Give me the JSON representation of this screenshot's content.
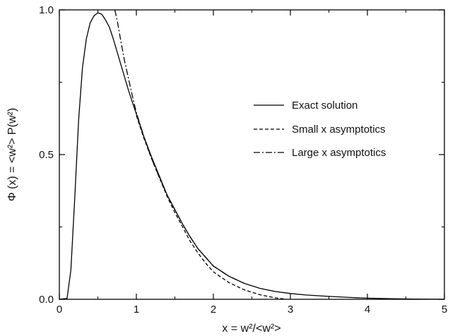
{
  "chart_data": {
    "type": "line",
    "xlabel": "x = w²/<w²>",
    "ylabel": "Φ (x) = <w²> P(w²)",
    "xlim": [
      0,
      5
    ],
    "ylim": [
      0,
      1
    ],
    "x_ticks": [
      "0",
      "1",
      "2",
      "3",
      "4",
      "5"
    ],
    "y_ticks": [
      "0.0",
      "0.5",
      "1.0"
    ],
    "legend_position": "right",
    "grid": false,
    "series": [
      {
        "name": "Exact solution",
        "style": "solid",
        "color": "#000000",
        "x": [
          0.0,
          0.1,
          0.15,
          0.2,
          0.25,
          0.3,
          0.35,
          0.4,
          0.45,
          0.5,
          0.55,
          0.6,
          0.65,
          0.7,
          0.8,
          0.9,
          1.0,
          1.1,
          1.2,
          1.3,
          1.4,
          1.5,
          1.6,
          1.7,
          1.8,
          1.9,
          2.0,
          2.2,
          2.4,
          2.6,
          2.8,
          3.0,
          3.2,
          3.5,
          3.8,
          4.0,
          4.3,
          4.6,
          5.0
        ],
        "y": [
          0.0,
          0.003,
          0.1,
          0.35,
          0.62,
          0.8,
          0.9,
          0.955,
          0.98,
          0.99,
          0.985,
          0.965,
          0.94,
          0.9,
          0.81,
          0.72,
          0.64,
          0.56,
          0.49,
          0.425,
          0.36,
          0.31,
          0.26,
          0.215,
          0.175,
          0.145,
          0.115,
          0.08,
          0.055,
          0.038,
          0.027,
          0.02,
          0.015,
          0.01,
          0.006,
          0.004,
          0.002,
          0.001,
          0.0
        ]
      },
      {
        "name": "Small x asymptotics",
        "style": "dashed",
        "color": "#000000",
        "x": [
          1.0,
          1.1,
          1.2,
          1.3,
          1.4,
          1.5,
          1.6,
          1.7,
          1.8,
          1.9,
          2.0,
          2.2,
          2.4,
          2.6,
          2.8,
          2.95
        ],
        "y": [
          0.635,
          0.555,
          0.485,
          0.42,
          0.355,
          0.3,
          0.25,
          0.2,
          0.16,
          0.125,
          0.095,
          0.058,
          0.033,
          0.016,
          0.005,
          0.0
        ]
      },
      {
        "name": "Large x asymptotics",
        "style": "dashdot",
        "color": "#000000",
        "x": [
          0.72,
          0.75,
          0.8,
          0.85,
          0.9,
          0.95,
          1.0,
          1.1,
          1.2,
          1.3,
          1.4,
          1.5,
          1.6,
          1.7,
          1.8,
          1.9,
          2.0,
          2.2,
          2.4
        ],
        "y": [
          1.0,
          0.965,
          0.89,
          0.82,
          0.76,
          0.7,
          0.645,
          0.56,
          0.485,
          0.42,
          0.36,
          0.31,
          0.26,
          0.215,
          0.175,
          0.145,
          0.115,
          0.08,
          0.055
        ]
      }
    ]
  }
}
